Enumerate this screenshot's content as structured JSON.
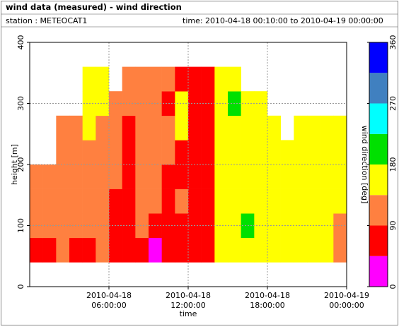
{
  "chart_data": {
    "type": "heatmap",
    "title": "wind data (measured) - wind direction",
    "station": "station : METEOCAT1",
    "time_range": "time: 2010-04-18 00:10:00 to 2010-04-19 00:00:00",
    "x_label": "time",
    "y_label": "height [m]",
    "xbins": [
      "2010-04-18 00:00:00",
      "2010-04-18 01:00:00",
      "2010-04-18 02:00:00",
      "2010-04-18 03:00:00",
      "2010-04-18 04:00:00",
      "2010-04-18 05:00:00",
      "2010-04-18 06:00:00",
      "2010-04-18 07:00:00",
      "2010-04-18 08:00:00",
      "2010-04-18 09:00:00",
      "2010-04-18 10:00:00",
      "2010-04-18 11:00:00",
      "2010-04-18 12:00:00",
      "2010-04-18 13:00:00",
      "2010-04-18 14:00:00",
      "2010-04-18 15:00:00",
      "2010-04-18 16:00:00",
      "2010-04-18 17:00:00",
      "2010-04-18 18:00:00",
      "2010-04-18 19:00:00",
      "2010-04-18 20:00:00",
      "2010-04-18 21:00:00",
      "2010-04-18 22:00:00",
      "2010-04-18 23:00:00",
      "2010-04-19 00:00:00"
    ],
    "ybins": [
      40,
      80,
      120,
      160,
      200,
      240,
      280,
      320,
      360
    ],
    "values": [
      [
        67,
        67,
        112,
        67,
        67,
        112,
        67,
        67,
        67,
        22,
        67,
        67,
        67,
        67,
        157,
        157,
        157,
        157,
        157,
        157,
        157,
        157,
        157,
        112
      ],
      [
        112,
        112,
        112,
        112,
        112,
        112,
        67,
        67,
        112,
        67,
        67,
        67,
        67,
        67,
        157,
        157,
        202,
        157,
        157,
        157,
        157,
        157,
        157,
        112
      ],
      [
        112,
        112,
        112,
        112,
        112,
        112,
        67,
        67,
        112,
        112,
        67,
        112,
        67,
        67,
        157,
        157,
        157,
        157,
        157,
        157,
        157,
        157,
        157,
        157
      ],
      [
        112,
        112,
        112,
        112,
        112,
        112,
        112,
        67,
        112,
        112,
        67,
        67,
        67,
        67,
        157,
        157,
        157,
        157,
        157,
        157,
        157,
        157,
        157,
        157
      ],
      [
        null,
        null,
        112,
        112,
        112,
        112,
        112,
        67,
        112,
        112,
        112,
        67,
        67,
        67,
        157,
        157,
        157,
        157,
        157,
        157,
        157,
        157,
        157,
        157
      ],
      [
        null,
        null,
        112,
        112,
        157,
        112,
        112,
        67,
        112,
        112,
        112,
        157,
        67,
        67,
        157,
        157,
        157,
        157,
        157,
        null,
        157,
        157,
        157,
        157
      ],
      [
        null,
        null,
        null,
        null,
        157,
        157,
        112,
        112,
        112,
        112,
        67,
        157,
        67,
        67,
        157,
        202,
        157,
        157,
        null,
        null,
        null,
        null,
        null,
        null
      ],
      [
        null,
        null,
        null,
        null,
        157,
        157,
        null,
        112,
        112,
        112,
        112,
        67,
        67,
        67,
        157,
        157,
        null,
        null,
        null,
        null,
        null,
        null,
        null,
        null
      ]
    ],
    "xlim": [
      "2010-04-18 00:00:00",
      "2010-04-19 00:00:00"
    ],
    "xticks": [
      "2010-04-18 06:00:00",
      "2010-04-18 12:00:00",
      "2010-04-18 18:00:00",
      "2010-04-19 00:00:00"
    ],
    "ylim": [
      0,
      400
    ],
    "yticks": [
      0,
      100,
      200,
      300,
      400
    ],
    "grid": true,
    "colorbar": {
      "label": "wind direction [deg]",
      "lim": [
        0,
        360
      ],
      "ticks": [
        0,
        90,
        180,
        270,
        360
      ],
      "colors": [
        "#ff00ff",
        "#ff0000",
        "#ff8040",
        "#ffff00",
        "#00e000",
        "#00ffff",
        "#4080c0",
        "#0000ff"
      ]
    }
  }
}
